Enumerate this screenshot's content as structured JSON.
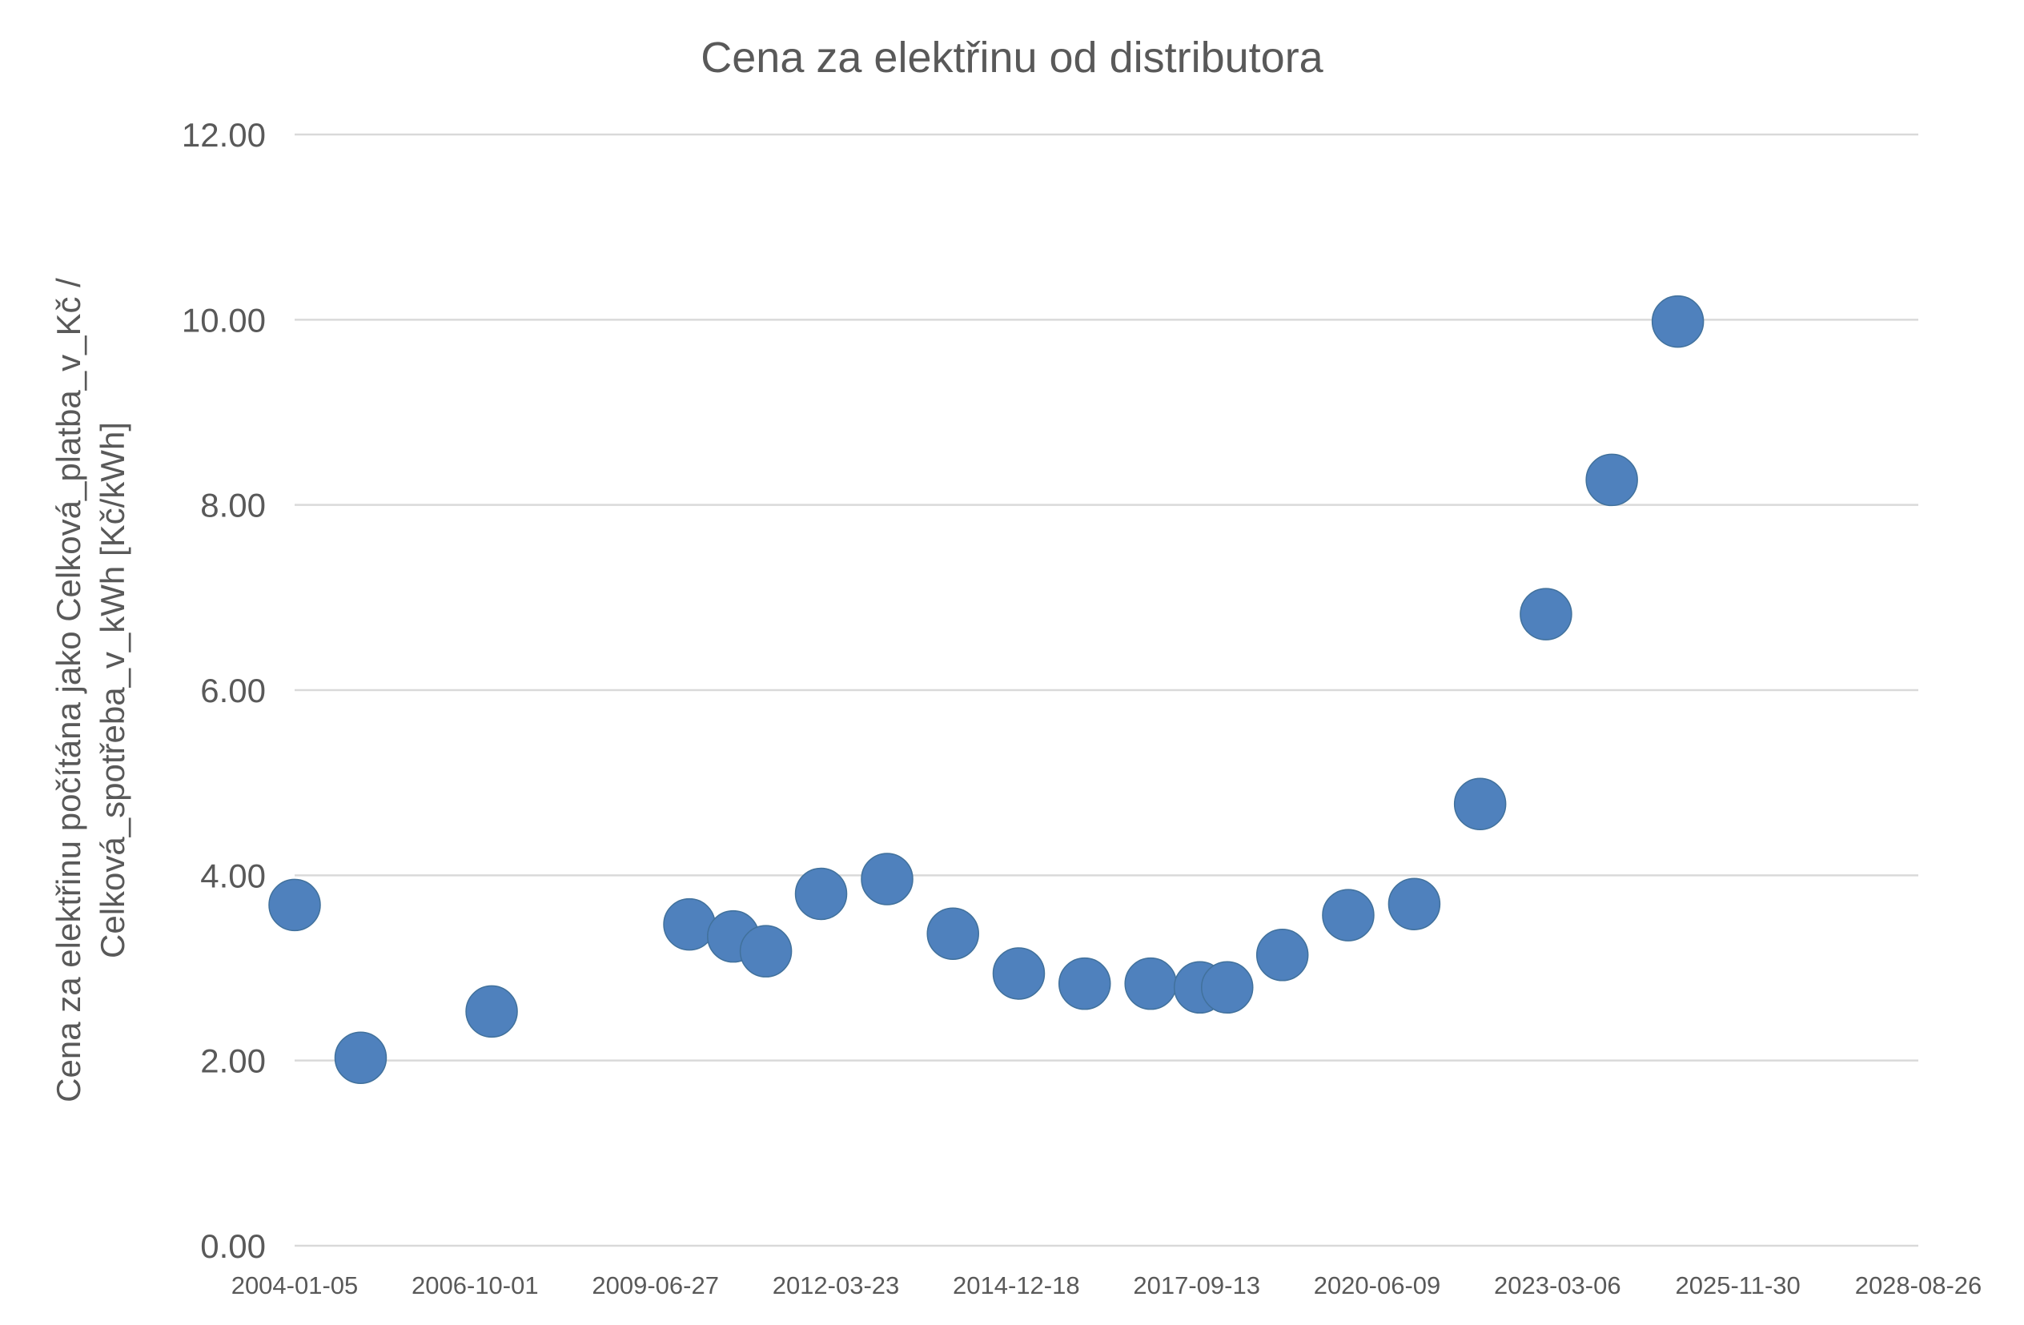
{
  "chart_data": {
    "type": "scatter",
    "title": "Cena za elektřinu od distributora",
    "xlabel": "",
    "ylabel_lines": [
      "Cena za elektřinu počítána jako Celková_platba_v_Kč /",
      "Celková_spotřeba_v_kWh [Kč/kWh]"
    ],
    "xlim": [
      "2004-01-05",
      "2028-08-26"
    ],
    "ylim": [
      0,
      12
    ],
    "x_ticks": [
      "2004-01-05",
      "2006-10-01",
      "2009-06-27",
      "2012-03-23",
      "2014-12-18",
      "2017-09-13",
      "2020-06-09",
      "2023-03-06",
      "2025-11-30",
      "2028-08-26"
    ],
    "y_ticks": [
      "0.00",
      "2.00",
      "4.00",
      "6.00",
      "8.00",
      "10.00",
      "12.00"
    ],
    "grid": true,
    "legend": "none",
    "marker_color": "#4F81BD",
    "points": [
      {
        "x": "2004-01-05",
        "y": 3.68
      },
      {
        "x": "2005-01-05",
        "y": 2.03
      },
      {
        "x": "2007-01-01",
        "y": 2.53
      },
      {
        "x": "2010-01-01",
        "y": 3.47
      },
      {
        "x": "2010-09-01",
        "y": 3.34
      },
      {
        "x": "2011-03-01",
        "y": 3.18
      },
      {
        "x": "2012-01-01",
        "y": 3.8
      },
      {
        "x": "2013-01-01",
        "y": 3.96
      },
      {
        "x": "2014-01-01",
        "y": 3.37
      },
      {
        "x": "2015-01-01",
        "y": 2.94
      },
      {
        "x": "2016-01-01",
        "y": 2.83
      },
      {
        "x": "2017-01-01",
        "y": 2.83
      },
      {
        "x": "2017-10-01",
        "y": 2.79
      },
      {
        "x": "2018-03-01",
        "y": 2.79
      },
      {
        "x": "2019-01-01",
        "y": 3.14
      },
      {
        "x": "2020-01-01",
        "y": 3.57
      },
      {
        "x": "2021-01-01",
        "y": 3.69
      },
      {
        "x": "2022-01-01",
        "y": 4.77
      },
      {
        "x": "2023-01-01",
        "y": 6.82
      },
      {
        "x": "2024-01-01",
        "y": 8.27
      },
      {
        "x": "2025-01-01",
        "y": 9.98
      }
    ]
  }
}
